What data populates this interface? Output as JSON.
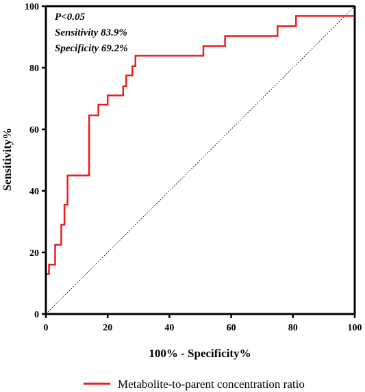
{
  "chart_data": {
    "type": "line",
    "xlabel": "100% - Specificity%",
    "ylabel": "Sensitivity%",
    "xlim": [
      0,
      100
    ],
    "ylim": [
      0,
      100
    ],
    "x_ticks": [
      0,
      20,
      40,
      60,
      80,
      100
    ],
    "y_ticks": [
      0,
      20,
      40,
      60,
      80,
      100
    ],
    "grid": false,
    "legend_position": "bottom",
    "annotations": [
      "P<0.05",
      "Sensitivity 83.9%",
      "Specificity 69.2%"
    ],
    "reference_line": {
      "style": "dotted",
      "from": [
        0,
        0
      ],
      "to": [
        100,
        100
      ]
    },
    "series": [
      {
        "name": "Metabolite-to-parent concentration ratio",
        "color": "#ee1c1c",
        "x": [
          0,
          0,
          1,
          1,
          3,
          3,
          5,
          5,
          6,
          6,
          7,
          7,
          8,
          8,
          14,
          14,
          17,
          17,
          20,
          20,
          25,
          25,
          26,
          26,
          28,
          28,
          29,
          29,
          30,
          30,
          51,
          51,
          58,
          58,
          75,
          75,
          78,
          78,
          81,
          81,
          100,
          100
        ],
        "y": [
          0,
          13,
          13,
          16,
          16,
          22.5,
          22.5,
          29,
          29,
          35.5,
          35.5,
          45,
          45,
          45,
          45,
          64.5,
          64.5,
          68,
          68,
          71,
          71,
          74,
          74,
          77.5,
          77.5,
          80.5,
          80.5,
          83.9,
          83.9,
          83.9,
          83.9,
          87,
          87,
          90.3,
          90.3,
          93.5,
          93.5,
          93.5,
          93.5,
          96.8,
          96.8,
          100
        ]
      }
    ]
  }
}
